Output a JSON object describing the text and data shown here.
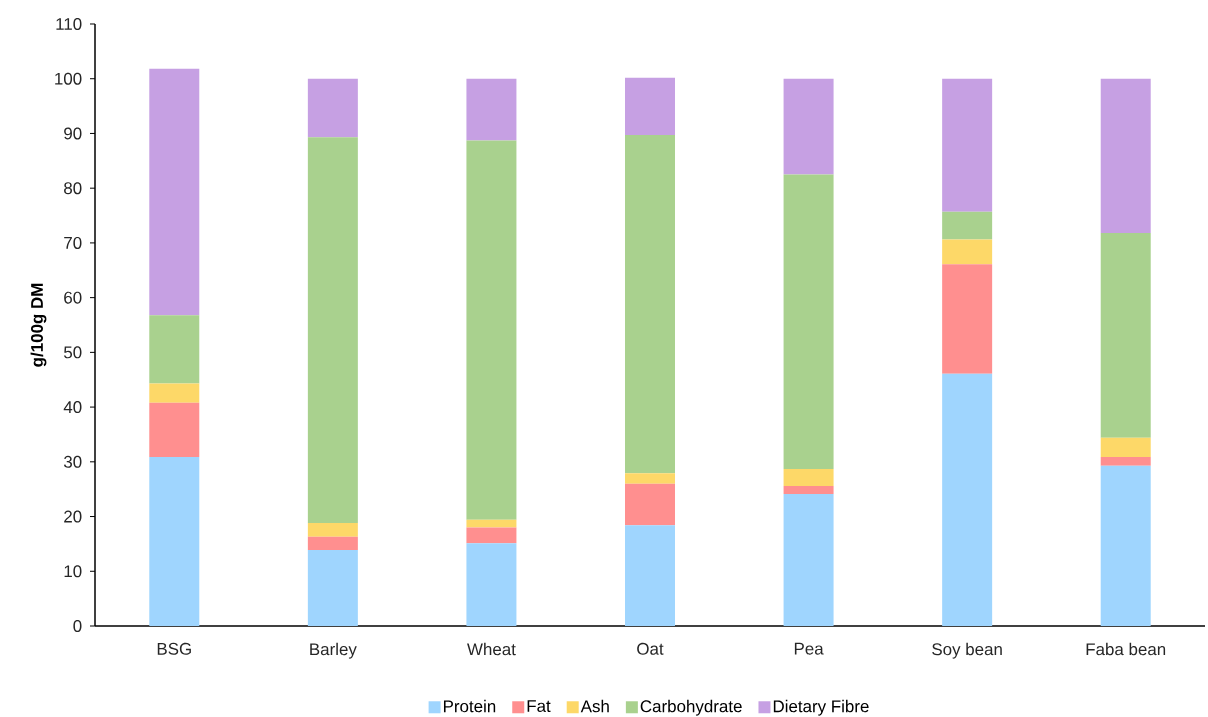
{
  "chart_data": {
    "type": "bar",
    "stacked": true,
    "ylabel": "g/100g DM",
    "categories": [
      "BSG",
      "Barley",
      "Wheat",
      "Oat",
      "Pea",
      "Soy bean",
      "Faba bean"
    ],
    "ylim": [
      0,
      110
    ],
    "yticks": [
      0,
      10,
      20,
      30,
      40,
      50,
      60,
      70,
      80,
      90,
      100,
      110
    ],
    "legend": "bottom",
    "grid": false,
    "series": [
      {
        "name": "Protein",
        "color": "#9fd5fe",
        "values": [
          30.9,
          13.9,
          15.1,
          18.4,
          24.1,
          46.1,
          29.3
        ]
      },
      {
        "name": "Fat",
        "color": "#ff8f8f",
        "values": [
          9.9,
          2.4,
          2.9,
          7.6,
          1.5,
          20.0,
          1.6
        ]
      },
      {
        "name": "Ash",
        "color": "#fdd868",
        "values": [
          3.5,
          2.5,
          1.4,
          1.9,
          3.1,
          4.5,
          3.5
        ]
      },
      {
        "name": "Carbohydrate",
        "color": "#a9d18e",
        "values": [
          12.5,
          70.5,
          69.3,
          61.8,
          53.8,
          5.1,
          37.4
        ]
      },
      {
        "name": "Dietary Fibre",
        "color": "#c6a0e3",
        "values": [
          45.0,
          10.7,
          11.3,
          10.5,
          17.5,
          24.3,
          28.2
        ]
      }
    ]
  }
}
